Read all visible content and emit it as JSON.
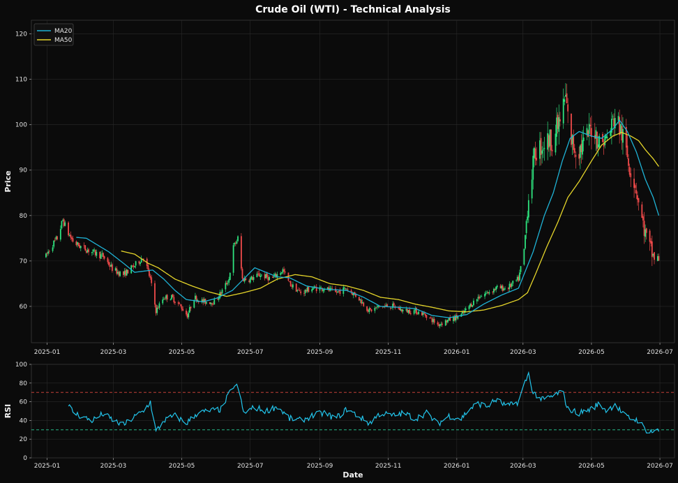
{
  "title": "Crude Oil (WTI) - Technical Analysis",
  "colors": {
    "background": "#0b0b0b",
    "panel": "#0b0b0b",
    "grid": "#2a2a2a",
    "up": "#2ee37e",
    "down": "#f04a4a",
    "ma20": "#1fb3d6",
    "ma50": "#e5d52a",
    "rsi": "#22c5ec",
    "overbought": "#e0483f",
    "oversold": "#2ad09a"
  },
  "chart_data": [
    {
      "type": "candlestick",
      "ylabel": "Price",
      "ylim": [
        52,
        123
      ],
      "yticks": [
        60,
        70,
        80,
        90,
        100,
        110,
        120
      ],
      "xlim": [
        "2024-12-18",
        "2026-07-14"
      ],
      "xticks": [
        "2025-01",
        "2025-03",
        "2025-05",
        "2025-07",
        "2025-09",
        "2025-11",
        "2026-01",
        "2026-03",
        "2026-05",
        "2026-07"
      ],
      "grid": true,
      "legend": {
        "position": "top-left",
        "entries": [
          "MA20",
          "MA50"
        ]
      },
      "price_anchors": [
        [
          "2024-12-31",
          71
        ],
        [
          "2025-01-04",
          73
        ],
        [
          "2025-01-10",
          75
        ],
        [
          "2025-01-15",
          79
        ],
        [
          "2025-01-20",
          76
        ],
        [
          "2025-01-25",
          74
        ],
        [
          "2025-02-01",
          73
        ],
        [
          "2025-02-10",
          72
        ],
        [
          "2025-02-20",
          71
        ],
        [
          "2025-03-01",
          68
        ],
        [
          "2025-03-10",
          67
        ],
        [
          "2025-03-20",
          69
        ],
        [
          "2025-03-28",
          71
        ],
        [
          "2025-04-03",
          66
        ],
        [
          "2025-04-08",
          59
        ],
        [
          "2025-04-15",
          62
        ],
        [
          "2025-04-22",
          62
        ],
        [
          "2025-04-30",
          60
        ],
        [
          "2025-05-06",
          58
        ],
        [
          "2025-05-12",
          62
        ],
        [
          "2025-05-20",
          61
        ],
        [
          "2025-05-30",
          61
        ],
        [
          "2025-06-05",
          63
        ],
        [
          "2025-06-12",
          66
        ],
        [
          "2025-06-16",
          73
        ],
        [
          "2025-06-20",
          75
        ],
        [
          "2025-06-24",
          66
        ],
        [
          "2025-07-01",
          66
        ],
        [
          "2025-07-10",
          67
        ],
        [
          "2025-07-20",
          66
        ],
        [
          "2025-07-30",
          68
        ],
        [
          "2025-08-05",
          65
        ],
        [
          "2025-08-15",
          63
        ],
        [
          "2025-08-25",
          64
        ],
        [
          "2025-09-05",
          64
        ],
        [
          "2025-09-15",
          63
        ],
        [
          "2025-09-25",
          64
        ],
        [
          "2025-10-05",
          62
        ],
        [
          "2025-10-15",
          59
        ],
        [
          "2025-10-25",
          60
        ],
        [
          "2025-11-05",
          60
        ],
        [
          "2025-11-15",
          59
        ],
        [
          "2025-11-25",
          59
        ],
        [
          "2025-12-05",
          58
        ],
        [
          "2025-12-15",
          56
        ],
        [
          "2025-12-25",
          57
        ],
        [
          "2026-01-05",
          58
        ],
        [
          "2026-01-12",
          60
        ],
        [
          "2026-01-20",
          62
        ],
        [
          "2026-01-28",
          63
        ],
        [
          "2026-02-05",
          64
        ],
        [
          "2026-02-15",
          64
        ],
        [
          "2026-02-25",
          66
        ],
        [
          "2026-03-02",
          72
        ],
        [
          "2026-03-05",
          82
        ],
        [
          "2026-03-08",
          88
        ],
        [
          "2026-03-12",
          94
        ],
        [
          "2026-03-20",
          96
        ],
        [
          "2026-03-28",
          97
        ],
        [
          "2026-04-03",
          101
        ],
        [
          "2026-04-08",
          106
        ],
        [
          "2026-04-12",
          97
        ],
        [
          "2026-04-18",
          94
        ],
        [
          "2026-04-25",
          96
        ],
        [
          "2026-05-02",
          100
        ],
        [
          "2026-05-08",
          96
        ],
        [
          "2026-05-15",
          97
        ],
        [
          "2026-05-22",
          102
        ],
        [
          "2026-05-28",
          98
        ],
        [
          "2026-06-03",
          92
        ],
        [
          "2026-06-10",
          86
        ],
        [
          "2026-06-15",
          79
        ],
        [
          "2026-06-20",
          74
        ],
        [
          "2026-06-25",
          71
        ],
        [
          "2026-06-30",
          70
        ]
      ],
      "ma20_anchors": [
        [
          "2025-01-27",
          75.2
        ],
        [
          "2025-02-05",
          75.0
        ],
        [
          "2025-02-15",
          73.5
        ],
        [
          "2025-02-25",
          72.0
        ],
        [
          "2025-03-10",
          69.5
        ],
        [
          "2025-03-20",
          67.5
        ],
        [
          "2025-04-05",
          68.0
        ],
        [
          "2025-04-15",
          66.0
        ],
        [
          "2025-04-25",
          63.5
        ],
        [
          "2025-05-05",
          61.5
        ],
        [
          "2025-05-20",
          61.0
        ],
        [
          "2025-06-01",
          61.8
        ],
        [
          "2025-06-15",
          63.5
        ],
        [
          "2025-06-25",
          66.0
        ],
        [
          "2025-07-05",
          68.5
        ],
        [
          "2025-07-15",
          67.5
        ],
        [
          "2025-07-25",
          66.5
        ],
        [
          "2025-08-05",
          66.3
        ],
        [
          "2025-08-20",
          64.5
        ],
        [
          "2025-09-05",
          63.8
        ],
        [
          "2025-09-25",
          63.5
        ],
        [
          "2025-10-10",
          62.0
        ],
        [
          "2025-10-25",
          60.0
        ],
        [
          "2025-11-10",
          59.8
        ],
        [
          "2025-11-25",
          59.5
        ],
        [
          "2025-12-10",
          58.0
        ],
        [
          "2025-12-25",
          57.5
        ],
        [
          "2026-01-10",
          58.2
        ],
        [
          "2026-01-25",
          60.5
        ],
        [
          "2026-02-10",
          62.5
        ],
        [
          "2026-02-25",
          64.0
        ],
        [
          "2026-03-10",
          72.0
        ],
        [
          "2026-03-20",
          80.0
        ],
        [
          "2026-03-28",
          85.0
        ],
        [
          "2026-04-05",
          92.0
        ],
        [
          "2026-04-12",
          97.0
        ],
        [
          "2026-04-20",
          98.5
        ],
        [
          "2026-05-01",
          97.5
        ],
        [
          "2026-05-10",
          97.0
        ],
        [
          "2026-05-20",
          99.0
        ],
        [
          "2026-05-26",
          101.0
        ],
        [
          "2026-06-02",
          98.5
        ],
        [
          "2026-06-10",
          94.0
        ],
        [
          "2026-06-18",
          88.0
        ],
        [
          "2026-06-25",
          84.0
        ],
        [
          "2026-06-30",
          80.0
        ]
      ],
      "ma50_anchors": [
        [
          "2025-03-08",
          72.2
        ],
        [
          "2025-03-20",
          71.5
        ],
        [
          "2025-04-01",
          69.5
        ],
        [
          "2025-04-10",
          68.5
        ],
        [
          "2025-04-25",
          66.0
        ],
        [
          "2025-05-10",
          64.5
        ],
        [
          "2025-05-25",
          63.2
        ],
        [
          "2025-06-10",
          62.2
        ],
        [
          "2025-06-25",
          63.0
        ],
        [
          "2025-07-10",
          64.0
        ],
        [
          "2025-07-25",
          66.0
        ],
        [
          "2025-08-10",
          67.0
        ],
        [
          "2025-08-25",
          66.5
        ],
        [
          "2025-09-10",
          65.0
        ],
        [
          "2025-09-25",
          64.5
        ],
        [
          "2025-10-10",
          63.5
        ],
        [
          "2025-10-25",
          62.0
        ],
        [
          "2025-11-10",
          61.5
        ],
        [
          "2025-11-25",
          60.5
        ],
        [
          "2025-12-10",
          59.8
        ],
        [
          "2025-12-25",
          59.0
        ],
        [
          "2026-01-10",
          58.8
        ],
        [
          "2026-01-25",
          59.2
        ],
        [
          "2026-02-10",
          60.2
        ],
        [
          "2026-02-25",
          61.5
        ],
        [
          "2026-03-05",
          63.0
        ],
        [
          "2026-03-12",
          67.0
        ],
        [
          "2026-03-22",
          73.0
        ],
        [
          "2026-04-01",
          78.5
        ],
        [
          "2026-04-10",
          84.0
        ],
        [
          "2026-04-20",
          87.5
        ],
        [
          "2026-05-01",
          92.0
        ],
        [
          "2026-05-10",
          95.5
        ],
        [
          "2026-05-20",
          97.5
        ],
        [
          "2026-05-28",
          98.3
        ],
        [
          "2026-06-05",
          97.5
        ],
        [
          "2026-06-12",
          96.5
        ],
        [
          "2026-06-18",
          94.5
        ],
        [
          "2026-06-25",
          92.5
        ],
        [
          "2026-06-30",
          90.8
        ]
      ]
    },
    {
      "type": "line",
      "ylabel": "RSI",
      "xlabel": "Date",
      "ylim": [
        0,
        100
      ],
      "yticks": [
        0,
        20,
        40,
        60,
        80,
        100
      ],
      "xticks": [
        "2025-01",
        "2025-03",
        "2025-05",
        "2025-07",
        "2025-09",
        "2025-11",
        "2026-01",
        "2026-03",
        "2026-05",
        "2026-07"
      ],
      "reference_lines": [
        70,
        30
      ],
      "rsi_anchors": [
        [
          "2025-01-20",
          56
        ],
        [
          "2025-01-25",
          48
        ],
        [
          "2025-02-01",
          44
        ],
        [
          "2025-02-10",
          40
        ],
        [
          "2025-02-20",
          47
        ],
        [
          "2025-03-01",
          40
        ],
        [
          "2025-03-10",
          35
        ],
        [
          "2025-03-20",
          44
        ],
        [
          "2025-03-28",
          50
        ],
        [
          "2025-04-03",
          60
        ],
        [
          "2025-04-08",
          28
        ],
        [
          "2025-04-15",
          40
        ],
        [
          "2025-04-25",
          45
        ],
        [
          "2025-05-05",
          37
        ],
        [
          "2025-05-15",
          48
        ],
        [
          "2025-05-25",
          50
        ],
        [
          "2025-06-05",
          52
        ],
        [
          "2025-06-12",
          68
        ],
        [
          "2025-06-16",
          77
        ],
        [
          "2025-06-20",
          76
        ],
        [
          "2025-06-25",
          48
        ],
        [
          "2025-07-05",
          54
        ],
        [
          "2025-07-15",
          50
        ],
        [
          "2025-07-25",
          55
        ],
        [
          "2025-08-05",
          42
        ],
        [
          "2025-08-15",
          40
        ],
        [
          "2025-08-25",
          45
        ],
        [
          "2025-09-05",
          48
        ],
        [
          "2025-09-15",
          42
        ],
        [
          "2025-09-25",
          52
        ],
        [
          "2025-10-05",
          45
        ],
        [
          "2025-10-15",
          37
        ],
        [
          "2025-10-25",
          48
        ],
        [
          "2025-11-05",
          45
        ],
        [
          "2025-11-15",
          48
        ],
        [
          "2025-11-25",
          42
        ],
        [
          "2025-12-05",
          48
        ],
        [
          "2025-12-15",
          36
        ],
        [
          "2025-12-25",
          45
        ],
        [
          "2026-01-05",
          42
        ],
        [
          "2026-01-12",
          52
        ],
        [
          "2026-01-20",
          58
        ],
        [
          "2026-01-28",
          55
        ],
        [
          "2026-02-05",
          62
        ],
        [
          "2026-02-15",
          55
        ],
        [
          "2026-02-25",
          60
        ],
        [
          "2026-03-02",
          78
        ],
        [
          "2026-03-06",
          90
        ],
        [
          "2026-03-10",
          70
        ],
        [
          "2026-03-18",
          62
        ],
        [
          "2026-03-28",
          66
        ],
        [
          "2026-04-05",
          72
        ],
        [
          "2026-04-10",
          52
        ],
        [
          "2026-04-20",
          48
        ],
        [
          "2026-04-30",
          52
        ],
        [
          "2026-05-08",
          58
        ],
        [
          "2026-05-15",
          50
        ],
        [
          "2026-05-22",
          58
        ],
        [
          "2026-05-30",
          45
        ],
        [
          "2026-06-05",
          42
        ],
        [
          "2026-06-12",
          40
        ],
        [
          "2026-06-18",
          30
        ],
        [
          "2026-06-25",
          28
        ],
        [
          "2026-06-30",
          29
        ]
      ]
    }
  ]
}
